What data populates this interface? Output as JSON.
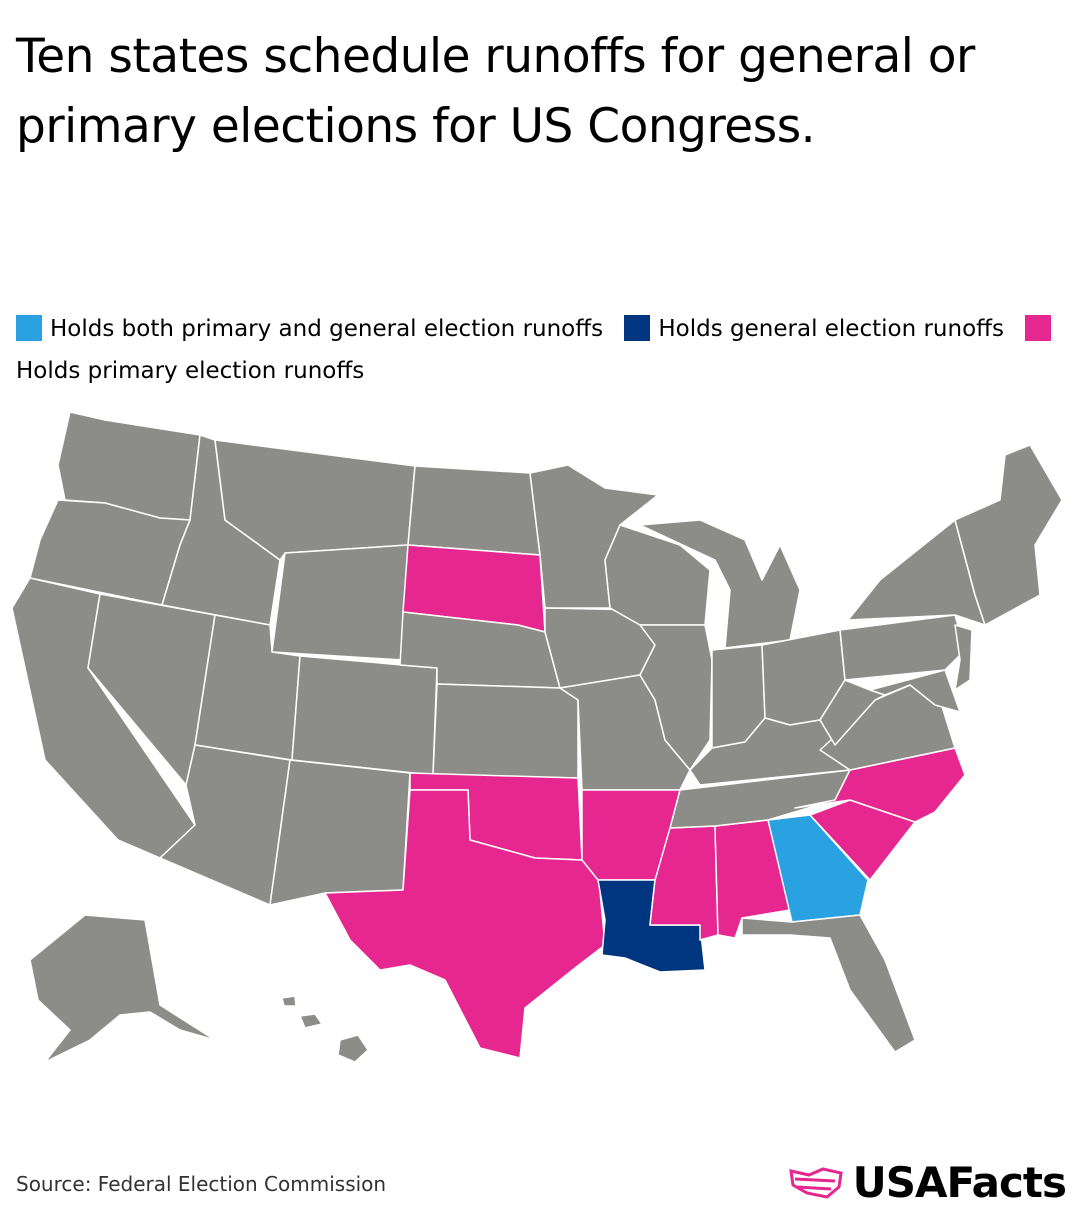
{
  "title": "Ten states schedule runoffs for general or primary elections for US Congress.",
  "legend": [
    {
      "label": "Holds both primary and general election runoffs",
      "color": "#2aa1e0"
    },
    {
      "label": "Holds general election runoffs",
      "color": "#003580"
    },
    {
      "label": "Holds primary election runoffs",
      "color": "#e5278f"
    }
  ],
  "colors": {
    "default": "#8c8c88",
    "border": "#ffffff"
  },
  "categories": {
    "both": [
      "Georgia"
    ],
    "general": [
      "Louisiana"
    ],
    "primary": [
      "South Dakota",
      "Texas",
      "Oklahoma",
      "Arkansas",
      "Mississippi",
      "Alabama",
      "South Carolina",
      "North Carolina"
    ]
  },
  "source": "Source: Federal Election Commission",
  "brand": "USAFacts"
}
